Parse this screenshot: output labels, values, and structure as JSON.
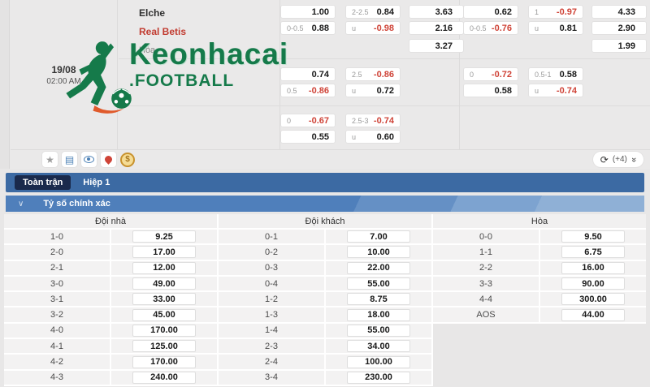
{
  "match": {
    "date": "19/08",
    "time": "02:00 AM",
    "home_team": "Elche",
    "away_team": "Real Betis",
    "draw_label": "Hòa"
  },
  "logo": {
    "title": "Keonhacai",
    "subtitle": ".FOOTBALL"
  },
  "odds": {
    "block1": {
      "left": {
        "hdp": [
          [
            "",
            "1.00"
          ],
          [
            "0-0.5",
            "0.88"
          ]
        ],
        "ou": [
          [
            "2-2.5",
            "0.84"
          ],
          [
            "u",
            "-0.98"
          ]
        ],
        "x2": [
          "3.63",
          "2.16",
          "3.27"
        ]
      },
      "right": {
        "hdp": [
          [
            "",
            "0.62"
          ],
          [
            "0-0.5",
            "-0.76"
          ]
        ],
        "ou": [
          [
            "1",
            "-0.97"
          ],
          [
            "u",
            "0.81"
          ]
        ],
        "x2": [
          "4.33",
          "2.90",
          "1.99"
        ]
      }
    },
    "block2": {
      "left": {
        "hdp": [
          [
            "",
            "0.74"
          ],
          [
            "0.5",
            "-0.86"
          ]
        ],
        "ou": [
          [
            "2.5",
            "-0.86"
          ],
          [
            "u",
            "0.72"
          ]
        ]
      },
      "right": {
        "hdp": [
          [
            "0",
            "-0.72"
          ],
          [
            "",
            "0.58"
          ]
        ],
        "ou": [
          [
            "0.5-1",
            "0.58"
          ],
          [
            "u",
            "-0.74"
          ]
        ]
      }
    },
    "block3": {
      "left": {
        "hdp": [
          [
            "0",
            "-0.67"
          ],
          [
            "",
            "0.55"
          ]
        ],
        "ou": [
          [
            "2.5-3",
            "-0.74"
          ],
          [
            "u",
            "0.60"
          ]
        ]
      }
    }
  },
  "toolbar": {
    "more_count": "(+4)"
  },
  "icons": {
    "star": "★",
    "stats": "▤",
    "coin_symbol": "$",
    "refresh": "⟳",
    "double_chevron": "»",
    "chevron_down": "∨"
  },
  "tabs": [
    {
      "label": "Toàn trận",
      "active": true
    },
    {
      "label": "Hiệp 1",
      "active": false
    }
  ],
  "section": {
    "title": "Tỷ số chính xác"
  },
  "correct_score": {
    "groups": [
      {
        "header": "Đội nhà",
        "rows": [
          [
            "1-0",
            "9.25"
          ],
          [
            "2-0",
            "17.00"
          ],
          [
            "2-1",
            "12.00"
          ],
          [
            "3-0",
            "49.00"
          ],
          [
            "3-1",
            "33.00"
          ],
          [
            "3-2",
            "45.00"
          ],
          [
            "4-0",
            "170.00"
          ],
          [
            "4-1",
            "125.00"
          ],
          [
            "4-2",
            "170.00"
          ],
          [
            "4-3",
            "240.00"
          ]
        ]
      },
      {
        "header": "Đội khách",
        "rows": [
          [
            "0-1",
            "7.00"
          ],
          [
            "0-2",
            "10.00"
          ],
          [
            "0-3",
            "22.00"
          ],
          [
            "0-4",
            "55.00"
          ],
          [
            "1-2",
            "8.75"
          ],
          [
            "1-3",
            "18.00"
          ],
          [
            "1-4",
            "55.00"
          ],
          [
            "2-3",
            "34.00"
          ],
          [
            "2-4",
            "100.00"
          ],
          [
            "3-4",
            "230.00"
          ]
        ]
      },
      {
        "header": "Hòa",
        "rows": [
          [
            "0-0",
            "9.50"
          ],
          [
            "1-1",
            "6.75"
          ],
          [
            "2-2",
            "16.00"
          ],
          [
            "3-3",
            "90.00"
          ],
          [
            "4-4",
            "300.00"
          ],
          [
            "AOS",
            "44.00"
          ]
        ]
      }
    ]
  },
  "colors": {
    "accent_green": "#157a4a",
    "negative_red": "#cf4337",
    "tab_blue": "#3c6aa3",
    "active_tab_navy": "#1a2a4c"
  }
}
